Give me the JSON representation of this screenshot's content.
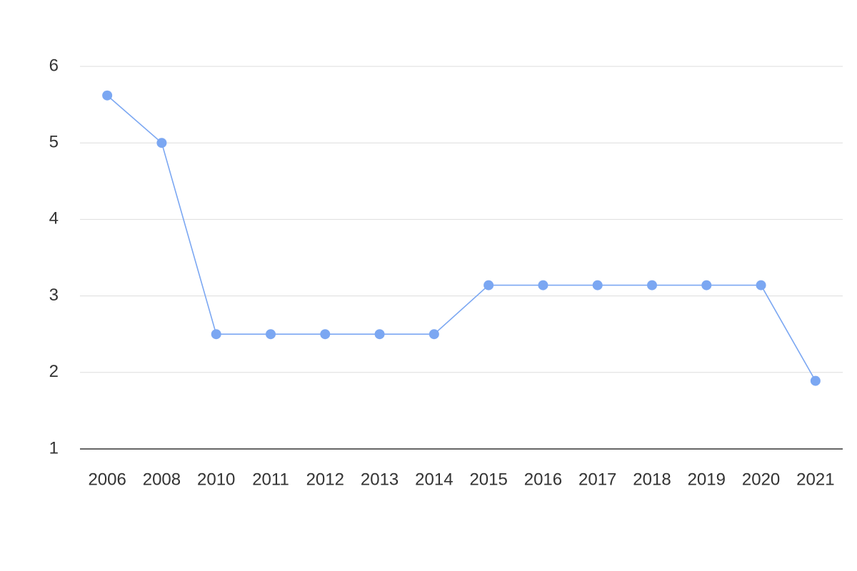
{
  "chart_data": {
    "type": "line",
    "categories": [
      "2006",
      "2008",
      "2010",
      "2011",
      "2012",
      "2013",
      "2014",
      "2015",
      "2016",
      "2017",
      "2018",
      "2019",
      "2020",
      "2021"
    ],
    "series": [
      {
        "color": "#7ba7f2",
        "values": [
          5.62,
          5.0,
          2.5,
          2.5,
          2.5,
          2.5,
          2.5,
          3.14,
          3.14,
          3.14,
          3.14,
          3.14,
          3.14,
          1.89
        ]
      }
    ],
    "ylim": [
      1,
      6
    ],
    "yticks": [
      1,
      2,
      3,
      4,
      5,
      6
    ],
    "grid": true
  }
}
